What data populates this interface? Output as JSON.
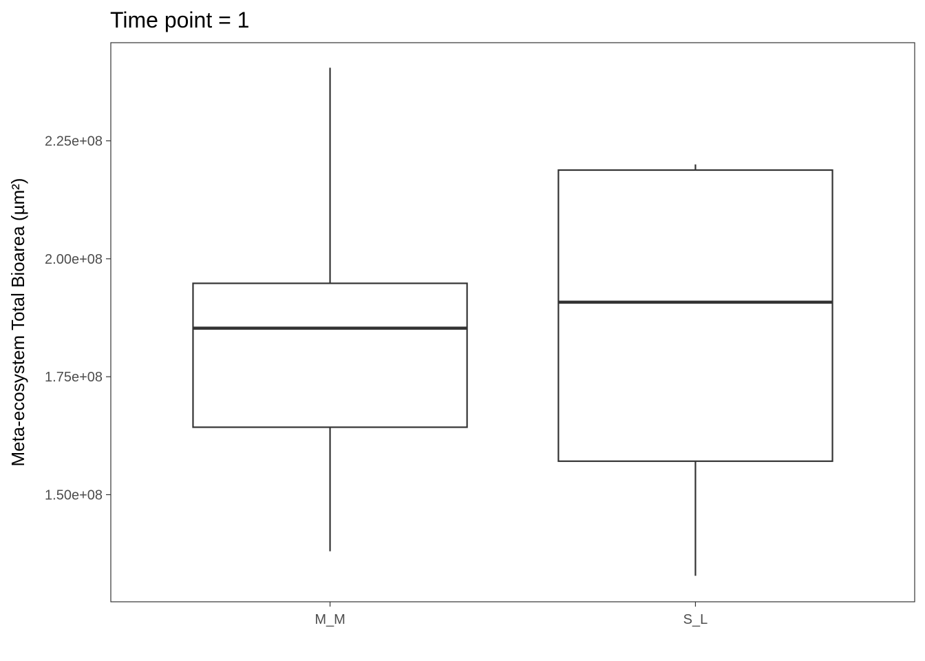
{
  "chart_data": {
    "type": "boxplot",
    "title": "Time point = 1",
    "xlabel": "",
    "ylabel": "Meta-ecosystem Total Bioarea (µm²)",
    "categories": [
      "M_M",
      "S_L"
    ],
    "boxes": [
      {
        "category": "M_M",
        "whisker_low": 138000000.0,
        "q1": 164300000.0,
        "median": 185300000.0,
        "q3": 194800000.0,
        "whisker_high": 240500000.0
      },
      {
        "category": "S_L",
        "whisker_low": 132800000.0,
        "q1": 157100000.0,
        "median": 190800000.0,
        "q3": 218800000.0,
        "whisker_high": 220000000.0
      }
    ],
    "yticks": [
      150000000.0,
      175000000.0,
      200000000.0,
      225000000.0
    ],
    "ytick_labels": [
      "1.50e+08",
      "1.75e+08",
      "2.00e+08",
      "2.25e+08"
    ],
    "ylim": [
      127300000.0,
      245800000.0
    ],
    "grid": false,
    "legend": "none",
    "colors": {
      "box_stroke": "#333333",
      "box_fill": "#ffffff",
      "panel_border": "#333333",
      "tick_label": "#4d4d4d"
    }
  }
}
